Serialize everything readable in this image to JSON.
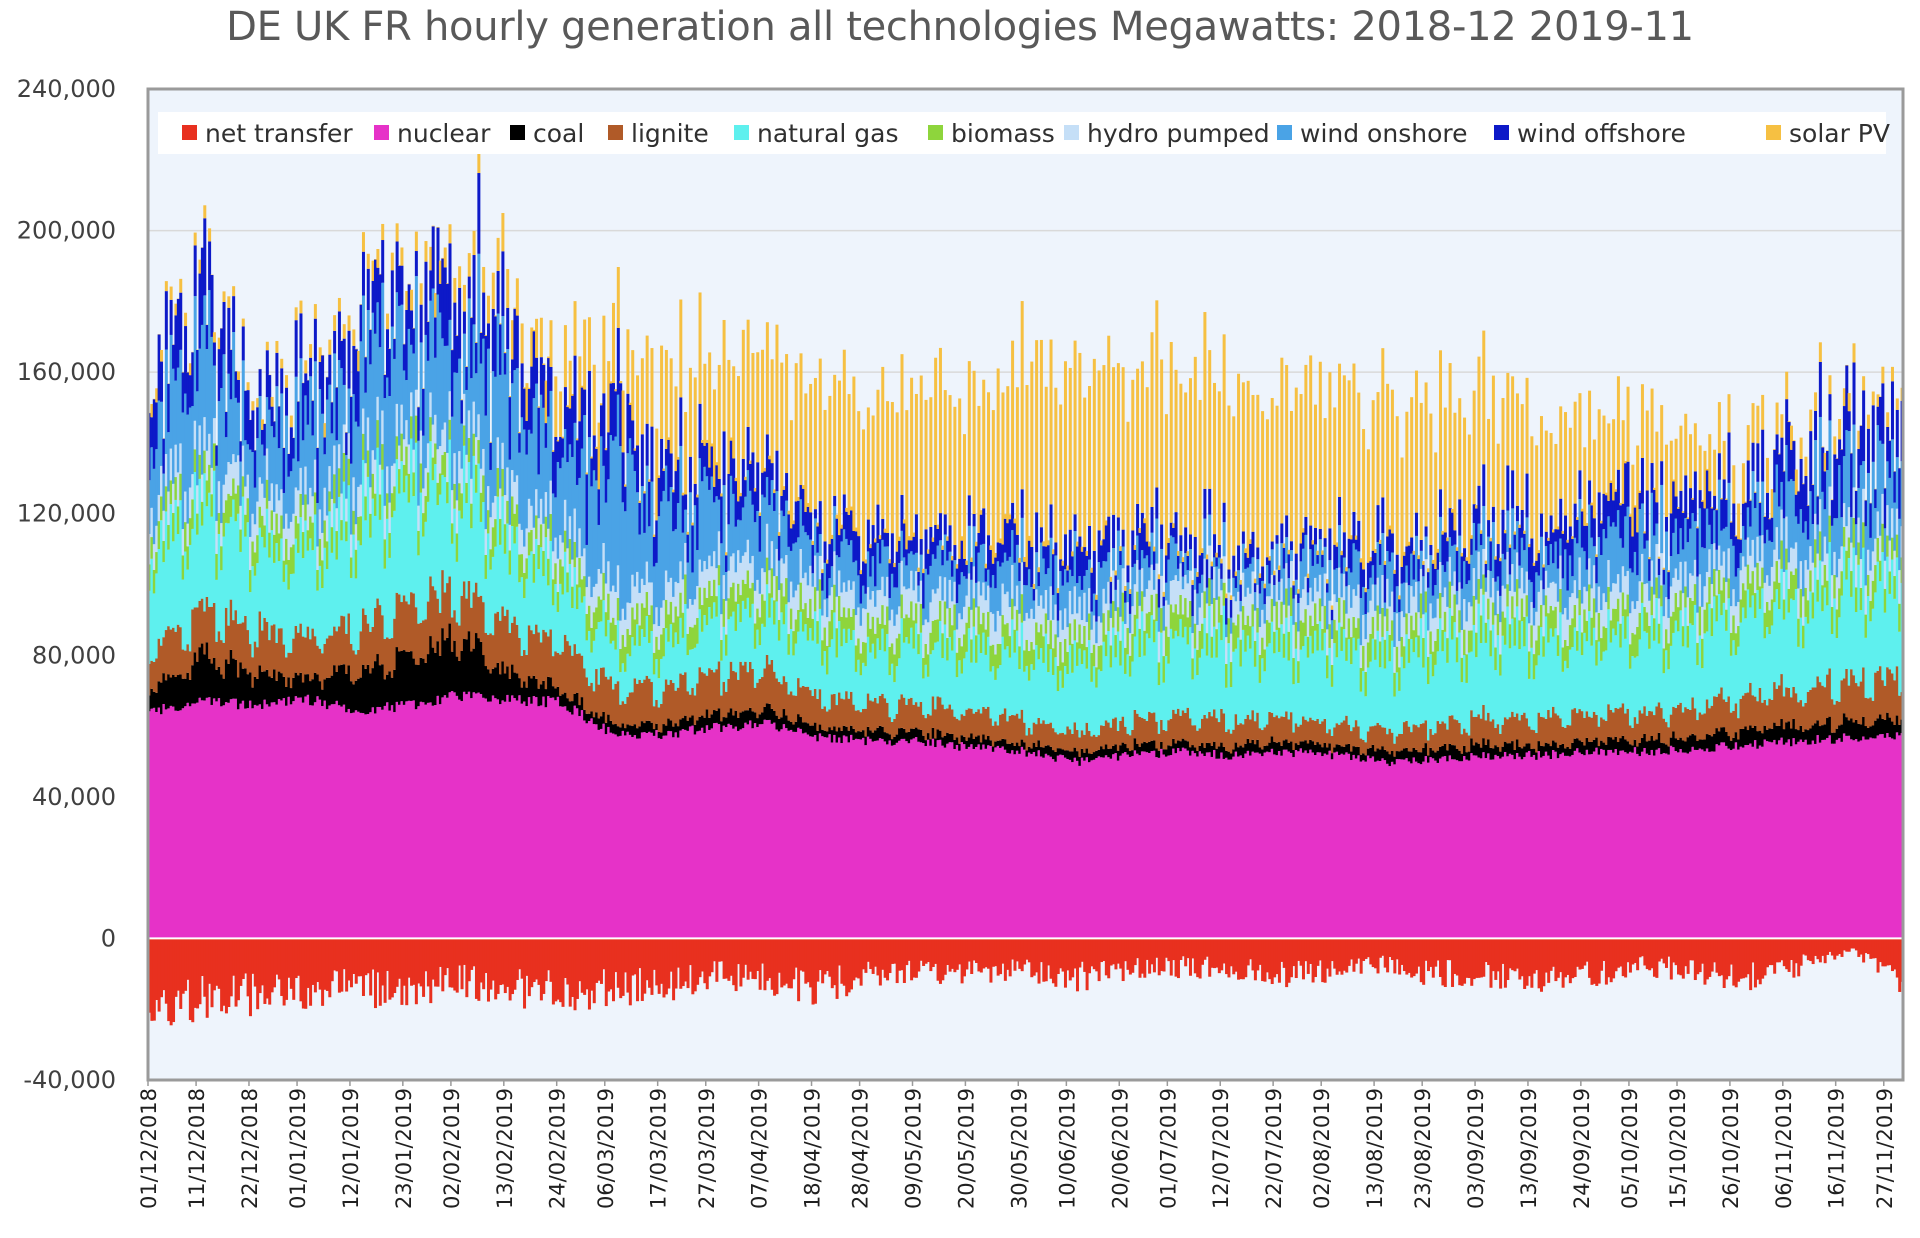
{
  "chart_data": {
    "type": "area",
    "title": "DE UK FR hourly generation all technologies Megawatts: 2018-12  2019-11",
    "xlabel": "",
    "ylabel": "",
    "ylim": [
      -40000,
      240000
    ],
    "yticks": [
      -40000,
      0,
      40000,
      80000,
      120000,
      160000,
      200000,
      240000
    ],
    "ytick_labels": [
      "-40,000",
      "0",
      "40,000",
      "80,000",
      "120,000",
      "160,000",
      "200,000",
      "240,000"
    ],
    "grid": true,
    "legend_position": "top",
    "x_start": "01/12/2018",
    "x_end": "30/11/2019",
    "total_days": 365,
    "x_tick_days": [
      0,
      10,
      21,
      31,
      42,
      53,
      63,
      74,
      85,
      95,
      106,
      116,
      127,
      138,
      148,
      159,
      170,
      181,
      191,
      202,
      212,
      223,
      234,
      244,
      255,
      265,
      276,
      287,
      298,
      308,
      318,
      329,
      340,
      351,
      361
    ],
    "categories": [
      "01/12/2018",
      "11/12/2018",
      "22/12/2018",
      "01/01/2019",
      "12/01/2019",
      "23/01/2019",
      "02/02/2019",
      "13/02/2019",
      "24/02/2019",
      "06/03/2019",
      "17/03/2019",
      "27/03/2019",
      "07/04/2019",
      "18/04/2019",
      "28/04/2019",
      "09/05/2019",
      "20/05/2019",
      "30/05/2019",
      "10/06/2019",
      "20/06/2019",
      "01/07/2019",
      "12/07/2019",
      "22/07/2019",
      "02/08/2019",
      "13/08/2019",
      "23/08/2019",
      "03/09/2019",
      "13/09/2019",
      "24/09/2019",
      "05/10/2019",
      "15/10/2019",
      "26/10/2019",
      "06/11/2019",
      "16/11/2019",
      "27/11/2019"
    ],
    "series": [
      {
        "name": "net transfer",
        "color": "#e8301f",
        "values": [
          -18000,
          -17000,
          -16000,
          -15000,
          -14000,
          -15000,
          -12000,
          -14000,
          -15000,
          -14000,
          -13000,
          -10000,
          -12000,
          -14000,
          -10000,
          -9000,
          -10000,
          -9000,
          -11000,
          -9000,
          -8000,
          -9000,
          -10000,
          -9000,
          -8000,
          -10000,
          -10000,
          -11000,
          -10000,
          -8000,
          -9000,
          -11000,
          -8000,
          -3000,
          -12000
        ]
      },
      {
        "name": "nuclear",
        "color": "#e632c8",
        "values": [
          64000,
          68000,
          66000,
          68000,
          65000,
          66000,
          69000,
          68000,
          67000,
          58000,
          58000,
          60000,
          61000,
          57000,
          56000,
          56000,
          54000,
          53000,
          50000,
          52000,
          53000,
          52000,
          53000,
          52000,
          50000,
          51000,
          52000,
          52000,
          53000,
          53000,
          54000,
          55000,
          56000,
          57000,
          58000
        ]
      },
      {
        "name": "coal",
        "color": "#000000",
        "values": [
          7000,
          14000,
          10000,
          6000,
          12000,
          14000,
          18000,
          8000,
          4000,
          3000,
          3000,
          4000,
          4000,
          3000,
          3000,
          3000,
          2500,
          2500,
          2500,
          3000,
          2500,
          3000,
          3000,
          2500,
          3000,
          3500,
          3500,
          3000,
          3500,
          3500,
          4000,
          4500,
          5000,
          5000,
          5000
        ]
      },
      {
        "name": "lignite",
        "color": "#b05a28",
        "values": [
          12000,
          14000,
          13000,
          12000,
          13000,
          16000,
          14000,
          14000,
          14000,
          11000,
          11000,
          12000,
          12000,
          9000,
          8000,
          8000,
          8000,
          7000,
          6000,
          7000,
          8000,
          8000,
          7000,
          7000,
          6000,
          7000,
          8000,
          8000,
          8000,
          8000,
          9000,
          10000,
          11000,
          12000,
          12000
        ]
      },
      {
        "name": "natural gas",
        "color": "#5ef0ee",
        "values": [
          30000,
          32000,
          28000,
          26000,
          34000,
          38000,
          33000,
          25000,
          20000,
          14000,
          15000,
          18000,
          17000,
          19000,
          17000,
          19000,
          20000,
          22000,
          22000,
          24000,
          25000,
          24000,
          23000,
          24000,
          23000,
          25000,
          26000,
          25000,
          24000,
          25000,
          24000,
          26000,
          29000,
          31000,
          32000
        ]
      },
      {
        "name": "biomass",
        "color": "#8ed53c",
        "values": [
          7000,
          7000,
          7000,
          7000,
          7000,
          7000,
          7000,
          7000,
          7000,
          7000,
          7000,
          7000,
          7000,
          7000,
          7000,
          7000,
          7000,
          7000,
          7000,
          7000,
          7000,
          7000,
          7000,
          7000,
          7000,
          7000,
          7000,
          7000,
          7000,
          7000,
          7000,
          7000,
          7000,
          7000,
          7000
        ]
      },
      {
        "name": "hydro pumped",
        "color": "#c5dff7",
        "values": [
          8000,
          8000,
          8000,
          8000,
          8000,
          8000,
          8000,
          8000,
          8000,
          8000,
          8000,
          8000,
          8000,
          8000,
          8000,
          8000,
          8000,
          8000,
          8000,
          8000,
          8000,
          8000,
          8000,
          8000,
          8000,
          8000,
          8000,
          8000,
          8000,
          8000,
          8000,
          8000,
          8000,
          8000,
          8000
        ]
      },
      {
        "name": "wind onshore",
        "color": "#4aa3e6",
        "values": [
          25000,
          28000,
          18000,
          20000,
          27000,
          26000,
          30000,
          26000,
          20000,
          33000,
          22000,
          17000,
          13000,
          8000,
          11000,
          10000,
          9000,
          9000,
          11000,
          9000,
          8000,
          6000,
          7000,
          8000,
          9000,
          9000,
          10000,
          10000,
          11000,
          13000,
          12000,
          12000,
          15000,
          18000,
          16000
        ]
      },
      {
        "name": "wind offshore",
        "color": "#0d19c8",
        "values": [
          13000,
          14000,
          10000,
          11000,
          13000,
          14000,
          15000,
          14000,
          12000,
          14000,
          11000,
          10000,
          9000,
          6000,
          8000,
          7000,
          7000,
          7000,
          8000,
          7000,
          6000,
          5000,
          5000,
          6000,
          7000,
          7000,
          8000,
          8000,
          9000,
          10000,
          9000,
          9000,
          11000,
          13000,
          12000
        ]
      },
      {
        "name": "solar PV",
        "color": "#f6c042",
        "values": [
          2000,
          2000,
          1500,
          2000,
          3000,
          3000,
          4000,
          6000,
          9000,
          12000,
          14000,
          17000,
          20000,
          22000,
          22000,
          24000,
          25000,
          27000,
          28000,
          27000,
          27000,
          26000,
          25000,
          24000,
          22000,
          21000,
          19000,
          17000,
          15000,
          12000,
          9000,
          6000,
          4000,
          3000,
          2000
        ]
      }
    ]
  }
}
